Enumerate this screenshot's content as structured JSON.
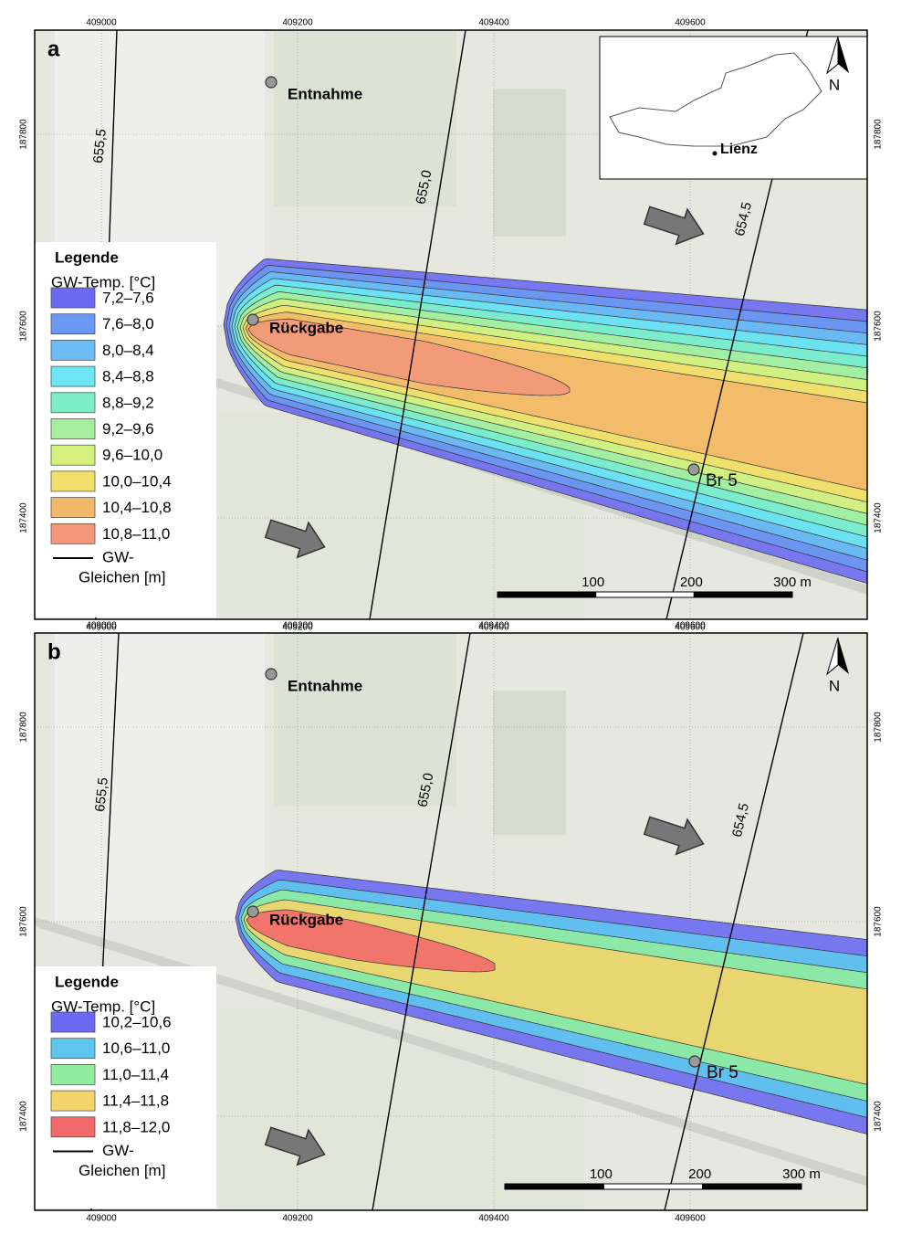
{
  "panels": [
    {
      "label": "a",
      "x_ticks": [
        409000,
        409200,
        409400,
        409600
      ],
      "y_ticks": [
        187800,
        187600,
        187400
      ],
      "places": [
        "Entnahme",
        "Rückgabe",
        "Br 5"
      ],
      "isolines": [
        "655,5",
        "655,0",
        "654,5"
      ],
      "legend": {
        "title": "Legende",
        "subtitle": "GW-Temp. [°C]",
        "items": [
          {
            "label": "7,2–7,6",
            "color": "#6a6af2"
          },
          {
            "label": "7,6–8,0",
            "color": "#6a98f2"
          },
          {
            "label": "8,0–8,4",
            "color": "#6bbcf2"
          },
          {
            "label": "8,4–8,8",
            "color": "#6be6f2"
          },
          {
            "label": "8,8–9,2",
            "color": "#7eeec8"
          },
          {
            "label": "9,2–9,6",
            "color": "#a6ee9e"
          },
          {
            "label": "9,6–10,0",
            "color": "#d6f07e"
          },
          {
            "label": "10,0–10,4",
            "color": "#f2de6a"
          },
          {
            "label": "10,4–10,8",
            "color": "#f2b86a"
          },
          {
            "label": "10,8–11,0",
            "color": "#f2977a"
          }
        ],
        "line_label": [
          "GW-",
          "Gleichen [m]"
        ]
      },
      "scale_labels": [
        "100",
        "200",
        "300 m"
      ],
      "north": "N",
      "inset_label": "Lienz"
    },
    {
      "label": "b",
      "x_ticks": [
        409000,
        409200,
        409400,
        409600
      ],
      "y_ticks": [
        187800,
        187600,
        187400
      ],
      "places": [
        "Entnahme",
        "Rückgabe",
        "Br 5"
      ],
      "isolines": [
        "655,5",
        "655,0",
        "654,5"
      ],
      "legend": {
        "title": "Legende",
        "subtitle": "GW-Temp. [°C]",
        "items": [
          {
            "label": "10,2–10,6",
            "color": "#6a6af2"
          },
          {
            "label": "10,6–11,0",
            "color": "#5ec6ee"
          },
          {
            "label": "11,0–11,4",
            "color": "#90ec9e"
          },
          {
            "label": "11,4–11,8",
            "color": "#f2d46a"
          },
          {
            "label": "11,8–12,0",
            "color": "#f26a6a"
          }
        ],
        "line_label": [
          "GW-",
          "Gleichen [m]"
        ]
      },
      "scale_labels": [
        "100",
        "200",
        "300 m"
      ],
      "north": "N"
    }
  ]
}
